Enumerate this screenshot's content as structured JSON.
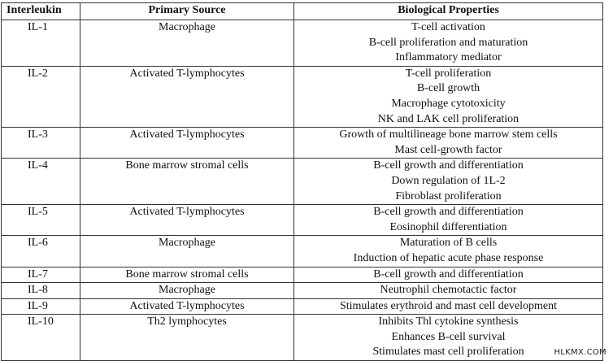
{
  "table": {
    "headers": [
      "Interleukin",
      "Primary Source",
      "Biological Properties"
    ],
    "rows": [
      {
        "interleukin": "IL-1",
        "source": "Macrophage",
        "properties": [
          "T-cell activation",
          "B-cell proliferation and maturation",
          "Inflammatory mediator"
        ]
      },
      {
        "interleukin": "IL-2",
        "source": "Activated T-lymphocytes",
        "properties": [
          "T-cell proliferation",
          "B-cell growth",
          "Macrophage cytotoxicity",
          "NK and LAK cell proliferation"
        ]
      },
      {
        "interleukin": "IL-3",
        "source": "Activated T-lymphocytes",
        "properties": [
          "Growth of multilineage bone marrow stem cells",
          "Mast cell-growth factor"
        ]
      },
      {
        "interleukin": "IL-4",
        "source": "Bone marrow stromal cells",
        "properties": [
          "B-cell growth and differentiation",
          "Down regulation of 1L-2",
          "Fibroblast proliferation"
        ]
      },
      {
        "interleukin": "IL-5",
        "source": "Activated T-lymphocytes",
        "properties": [
          "B-cell growth and differentiation",
          "Eosinophil differentiation"
        ]
      },
      {
        "interleukin": "IL-6",
        "source": "Macrophage",
        "properties": [
          "Maturation of B cells",
          "Induction of hepatic acute phase response"
        ]
      },
      {
        "interleukin": "IL-7",
        "source": "Bone marrow stromal cells",
        "properties": [
          "B-cell growth and differentiation"
        ]
      },
      {
        "interleukin": "IL-8",
        "source": "Macrophage",
        "properties": [
          "Neutrophil chemotactic factor"
        ]
      },
      {
        "interleukin": "IL-9",
        "source": "Activated T-lymphocytes",
        "properties": [
          "Stimulates erythroid and mast cell development"
        ]
      },
      {
        "interleukin": "IL-10",
        "source": "Th2 lymphocytes",
        "properties": [
          "Inhibits Thl cytokine synthesis",
          "Enhances B-cell survival",
          "Stimulates mast cell proliferation"
        ]
      }
    ]
  },
  "watermark": "HLKMX.COM"
}
